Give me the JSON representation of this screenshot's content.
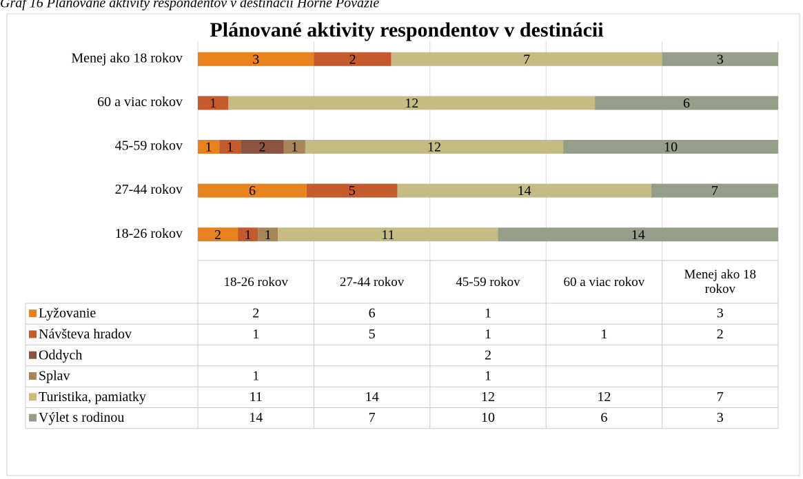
{
  "caption": "Graf 16 Plánované aktivity respondentov v destinácii Horné Považie",
  "chart_data": {
    "type": "percent-stacked-hbar",
    "title": "Plánované aktivity respondentov v destinácii",
    "categories": [
      "18-26 rokov",
      "27-44 rokov",
      "45-59 rokov",
      "60 a viac rokov",
      "Menej ako 18 rokov"
    ],
    "series": [
      {
        "name": "Lyžovanie",
        "color": "#e8821e",
        "values": [
          2,
          6,
          1,
          null,
          3
        ]
      },
      {
        "name": "Návšteva hradov",
        "color": "#c55a2d",
        "values": [
          1,
          5,
          1,
          1,
          2
        ]
      },
      {
        "name": "Oddych",
        "color": "#8b5440",
        "values": [
          null,
          null,
          2,
          null,
          null
        ]
      },
      {
        "name": "Splav",
        "color": "#a6865a",
        "values": [
          1,
          null,
          1,
          null,
          null
        ]
      },
      {
        "name": "Turistika, pamiatky",
        "color": "#c4bc84",
        "values": [
          11,
          14,
          12,
          12,
          7
        ]
      },
      {
        "name": "Výlet s rodinou",
        "color": "#959e88",
        "values": [
          14,
          7,
          10,
          6,
          3
        ]
      }
    ],
    "xlim": [
      0,
      100
    ],
    "xticks": [
      0,
      20,
      40,
      60,
      80,
      100
    ],
    "show_tick_labels": false,
    "grid": true,
    "data_table": true
  }
}
